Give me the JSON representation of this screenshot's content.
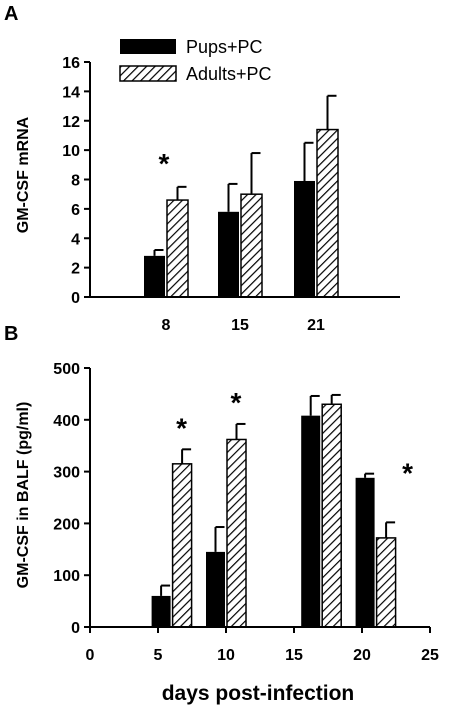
{
  "colors": {
    "solid": "#000000",
    "hatch": "#000000",
    "background": "#ffffff"
  },
  "chart_data": [
    {
      "panel": "A",
      "type": "bar",
      "ylabel": "GM-CSF mRNA",
      "xlabel": "",
      "ylim": [
        0,
        16
      ],
      "yticks": [
        0,
        2,
        4,
        6,
        8,
        10,
        12,
        14,
        16
      ],
      "categories": [
        "8",
        "15",
        "21"
      ],
      "series": [
        {
          "name": "Pups+PC",
          "pattern": "solid",
          "values": [
            2.8,
            5.8,
            7.9
          ],
          "errors": [
            0.4,
            1.9,
            2.6
          ]
        },
        {
          "name": "Adults+PC",
          "pattern": "hatched",
          "values": [
            6.6,
            7.0,
            11.4
          ],
          "errors": [
            0.9,
            2.8,
            2.3
          ]
        }
      ],
      "annotations": [
        {
          "text": "*",
          "category": "8"
        }
      ],
      "legend": "top-left"
    },
    {
      "panel": "B",
      "type": "bar",
      "ylabel": "GM-CSF in BALF (pg/ml)",
      "xlabel": "days post-infection",
      "xlim": [
        0,
        25
      ],
      "xticks": [
        0,
        5,
        10,
        15,
        20,
        25
      ],
      "ylim": [
        0,
        500
      ],
      "yticks": [
        0,
        100,
        200,
        300,
        400,
        500
      ],
      "groups": [
        6,
        10,
        17,
        21
      ],
      "series": [
        {
          "name": "Pups+PC",
          "pattern": "solid",
          "values": [
            60,
            145,
            408,
            288
          ],
          "errors": [
            20,
            48,
            38,
            8
          ]
        },
        {
          "name": "Adults+PC",
          "pattern": "hatched",
          "values": [
            315,
            362,
            430,
            172
          ],
          "errors": [
            28,
            30,
            18,
            30
          ]
        }
      ],
      "annotations": [
        {
          "text": "*",
          "group": 6
        },
        {
          "text": "*",
          "group": 10
        },
        {
          "text": "*",
          "group": 21
        }
      ]
    }
  ]
}
